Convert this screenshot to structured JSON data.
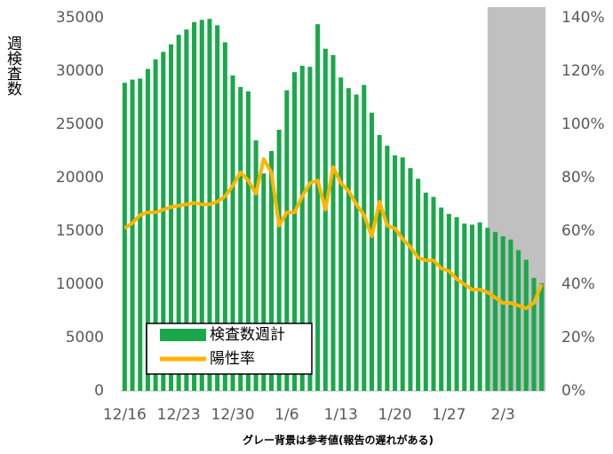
{
  "chart_data": {
    "type": "bar-line",
    "y_label": "週検査数",
    "annotation": "グレー背景は参考値(報告の遅れがある)",
    "categories": [
      "12/16",
      null,
      null,
      null,
      null,
      null,
      null,
      "12/23",
      null,
      null,
      null,
      null,
      null,
      null,
      "12/30",
      null,
      null,
      null,
      null,
      null,
      null,
      "1/6",
      null,
      null,
      null,
      null,
      null,
      null,
      "1/13",
      null,
      null,
      null,
      null,
      null,
      null,
      "1/20",
      null,
      null,
      null,
      null,
      null,
      null,
      "1/27",
      null,
      null,
      null,
      null,
      null,
      null,
      "2/3",
      null,
      null,
      null,
      null,
      null
    ],
    "series": [
      {
        "name": "検査数週計",
        "color": "#1aa84b",
        "kind": "bar",
        "values": [
          28900,
          29200,
          29300,
          30200,
          31100,
          31800,
          32500,
          33400,
          33900,
          34600,
          34800,
          34900,
          34300,
          32700,
          29600,
          28500,
          28100,
          23500,
          20400,
          22500,
          24500,
          28200,
          29900,
          30500,
          30400,
          34400,
          32100,
          31500,
          29400,
          28400,
          27800,
          28700,
          26100,
          24000,
          23000,
          22100,
          21900,
          20900,
          19900,
          18600,
          18200,
          17200,
          16600,
          16300,
          15700,
          15600,
          15800,
          15300,
          14900,
          14500,
          14200,
          13200,
          12300,
          10600,
          10100
        ]
      },
      {
        "name": "陽性率",
        "color": "#ffb400",
        "kind": "line",
        "axis": "y2",
        "values": [
          61,
          63,
          66,
          67,
          67,
          68,
          69,
          69.5,
          70,
          70.5,
          70,
          70,
          71,
          73,
          77,
          82,
          79,
          74,
          87,
          82,
          62,
          67,
          67,
          73,
          78,
          79,
          68,
          84,
          78,
          75,
          70,
          66,
          58,
          71,
          62,
          61,
          57,
          54,
          50,
          49,
          49,
          46,
          45,
          42,
          40,
          38,
          38,
          37,
          35,
          33,
          33,
          32,
          31,
          33,
          40
        ]
      }
    ],
    "shaded_from": 48,
    "shade_color": "#c0c0c0",
    "ylim": [
      0,
      35000
    ],
    "yticks": [
      0,
      5000,
      10000,
      15000,
      20000,
      25000,
      30000,
      35000
    ],
    "y2lim": [
      0,
      140
    ],
    "y2ticks": [
      {
        "value": 0,
        "label": "0%"
      },
      {
        "value": 20,
        "label": "20%"
      },
      {
        "value": 40,
        "label": "40%"
      },
      {
        "value": 60,
        "label": "60%"
      },
      {
        "value": 80,
        "label": "80%"
      },
      {
        "value": 100,
        "label": "100%"
      },
      {
        "value": 120,
        "label": "120%"
      },
      {
        "value": 140,
        "label": "140%"
      }
    ]
  }
}
